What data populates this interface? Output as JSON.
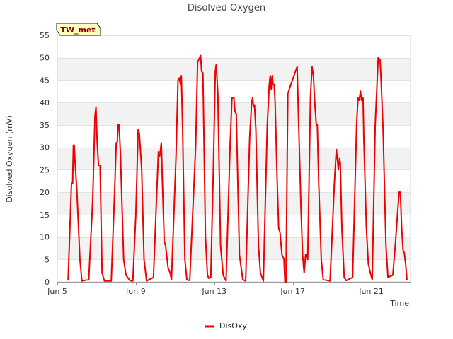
{
  "chart_data": {
    "type": "line",
    "title": "Disolved Oxygen",
    "xlabel": "Time",
    "ylabel": "Disolved Oxygen (mV)",
    "station_badge": "TW_met",
    "x_tick_labels": [
      "Jun 5",
      "Jun 9",
      "Jun 13",
      "Jun 17",
      "Jun 21"
    ],
    "x_ticks_day": [
      5,
      9,
      13,
      17,
      21
    ],
    "xlim_day": [
      5,
      23
    ],
    "ylim": [
      0,
      55
    ],
    "y_ticks": [
      0,
      5,
      10,
      15,
      20,
      25,
      30,
      35,
      40,
      45,
      50,
      55
    ],
    "grid": "horizontal bands",
    "legend_placement": "bottom-center",
    "series": [
      {
        "name": "DisOxy",
        "color": "#ee0000",
        "points": [
          [
            5.55,
            0.3
          ],
          [
            5.72,
            22
          ],
          [
            5.78,
            22
          ],
          [
            5.82,
            30.5
          ],
          [
            5.86,
            30.5
          ],
          [
            5.9,
            27
          ],
          [
            6.0,
            20
          ],
          [
            6.15,
            5
          ],
          [
            6.25,
            0.2
          ],
          [
            6.6,
            0.5
          ],
          [
            6.8,
            18
          ],
          [
            6.92,
            37
          ],
          [
            6.97,
            39
          ],
          [
            7.03,
            31
          ],
          [
            7.1,
            26
          ],
          [
            7.18,
            26
          ],
          [
            7.28,
            2
          ],
          [
            7.4,
            0.2
          ],
          [
            7.75,
            0.2
          ],
          [
            7.92,
            20
          ],
          [
            8.0,
            31
          ],
          [
            8.05,
            31
          ],
          [
            8.1,
            35
          ],
          [
            8.15,
            35
          ],
          [
            8.22,
            28
          ],
          [
            8.38,
            5
          ],
          [
            8.5,
            1.5
          ],
          [
            8.7,
            0.3
          ],
          [
            8.85,
            0.2
          ],
          [
            9.0,
            15
          ],
          [
            9.12,
            34
          ],
          [
            9.18,
            33
          ],
          [
            9.3,
            25
          ],
          [
            9.42,
            5
          ],
          [
            9.55,
            0.2
          ],
          [
            9.9,
            1
          ],
          [
            10.05,
            18
          ],
          [
            10.15,
            29
          ],
          [
            10.22,
            28
          ],
          [
            10.3,
            31
          ],
          [
            10.35,
            23
          ],
          [
            10.45,
            9
          ],
          [
            10.52,
            8
          ],
          [
            10.65,
            3
          ],
          [
            10.75,
            2
          ],
          [
            10.82,
            0.5
          ],
          [
            11.05,
            28
          ],
          [
            11.15,
            45
          ],
          [
            11.22,
            45.5
          ],
          [
            11.28,
            44
          ],
          [
            11.32,
            46
          ],
          [
            11.38,
            35
          ],
          [
            11.5,
            5
          ],
          [
            11.6,
            0.5
          ],
          [
            11.75,
            0.3
          ],
          [
            12.05,
            30
          ],
          [
            12.15,
            49
          ],
          [
            12.25,
            50
          ],
          [
            12.3,
            50.5
          ],
          [
            12.35,
            47
          ],
          [
            12.42,
            46.5
          ],
          [
            12.55,
            10
          ],
          [
            12.65,
            1.5
          ],
          [
            12.72,
            0.8
          ],
          [
            12.82,
            1
          ],
          [
            12.95,
            25
          ],
          [
            13.05,
            47
          ],
          [
            13.1,
            48.5
          ],
          [
            13.18,
            42
          ],
          [
            13.32,
            8
          ],
          [
            13.45,
            1.5
          ],
          [
            13.6,
            0.2
          ],
          [
            13.8,
            30
          ],
          [
            13.9,
            41
          ],
          [
            14.0,
            41
          ],
          [
            14.05,
            38
          ],
          [
            14.12,
            37.5
          ],
          [
            14.28,
            6
          ],
          [
            14.45,
            0.5
          ],
          [
            14.6,
            0.2
          ],
          [
            14.8,
            32
          ],
          [
            14.9,
            40
          ],
          [
            14.95,
            41
          ],
          [
            15.0,
            39
          ],
          [
            15.05,
            39.5
          ],
          [
            15.12,
            34
          ],
          [
            15.25,
            8
          ],
          [
            15.35,
            2
          ],
          [
            15.5,
            0.2
          ],
          [
            15.7,
            35
          ],
          [
            15.8,
            44
          ],
          [
            15.85,
            46
          ],
          [
            15.9,
            43
          ],
          [
            15.95,
            46
          ],
          [
            16.0,
            44
          ],
          [
            16.05,
            44
          ],
          [
            16.1,
            40
          ],
          [
            16.2,
            23
          ],
          [
            16.28,
            12
          ],
          [
            16.35,
            11
          ],
          [
            16.45,
            6
          ],
          [
            16.55,
            5
          ],
          [
            16.6,
            0
          ],
          [
            16.65,
            0
          ],
          [
            16.75,
            42
          ],
          [
            16.9,
            44
          ],
          [
            17.1,
            46.5
          ],
          [
            17.22,
            48
          ],
          [
            17.3,
            35
          ],
          [
            17.42,
            16
          ],
          [
            17.5,
            6
          ],
          [
            17.58,
            2
          ],
          [
            17.65,
            6
          ],
          [
            17.72,
            6
          ],
          [
            17.76,
            5
          ],
          [
            17.82,
            20
          ],
          [
            17.9,
            41
          ],
          [
            17.98,
            48
          ],
          [
            18.05,
            46
          ],
          [
            18.12,
            40
          ],
          [
            18.2,
            35
          ],
          [
            18.25,
            35
          ],
          [
            18.32,
            22
          ],
          [
            18.45,
            5
          ],
          [
            18.55,
            0.5
          ],
          [
            18.9,
            0.2
          ],
          [
            19.0,
            10
          ],
          [
            19.12,
            22
          ],
          [
            19.22,
            29.5
          ],
          [
            19.28,
            27
          ],
          [
            19.32,
            25
          ],
          [
            19.38,
            27.5
          ],
          [
            19.42,
            26.5
          ],
          [
            19.5,
            12
          ],
          [
            19.62,
            1
          ],
          [
            19.72,
            0.3
          ],
          [
            20.05,
            1
          ],
          [
            20.25,
            35
          ],
          [
            20.32,
            41
          ],
          [
            20.38,
            40.5
          ],
          [
            20.45,
            42.5
          ],
          [
            20.5,
            40.5
          ],
          [
            20.58,
            41
          ],
          [
            20.62,
            32
          ],
          [
            20.75,
            12
          ],
          [
            20.85,
            4
          ],
          [
            20.95,
            2
          ],
          [
            21.05,
            0.5
          ],
          [
            21.2,
            35
          ],
          [
            21.3,
            45
          ],
          [
            21.35,
            50
          ],
          [
            21.45,
            49.5
          ],
          [
            21.5,
            45
          ],
          [
            21.6,
            34
          ],
          [
            21.75,
            8
          ],
          [
            21.85,
            1
          ],
          [
            22.1,
            1.5
          ],
          [
            22.22,
            8
          ],
          [
            22.35,
            16
          ],
          [
            22.42,
            20
          ],
          [
            22.48,
            20
          ],
          [
            22.55,
            12
          ],
          [
            22.62,
            7
          ],
          [
            22.68,
            6.5
          ],
          [
            22.75,
            4
          ],
          [
            22.82,
            0.3
          ]
        ]
      }
    ]
  }
}
